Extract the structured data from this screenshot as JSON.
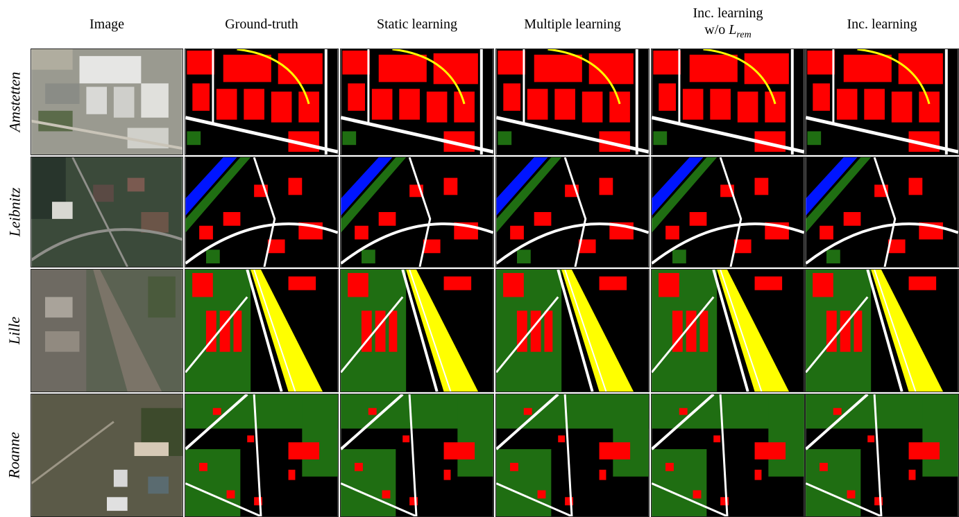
{
  "columns": [
    "Image",
    "Ground-truth",
    "Static learning",
    "Multiple learning",
    "Inc. learning w/o L_rem",
    "Inc. learning"
  ],
  "columns_display": {
    "inc_wo_line1": "Inc. learning",
    "inc_wo_prefix": "w/o ",
    "inc_wo_math": "L",
    "inc_wo_sub": "rem"
  },
  "rows": [
    "Amstetten",
    "Leibnitz",
    "Lille",
    "Roanne"
  ],
  "legend_colors": {
    "building": "#ff0000",
    "road": "#ffffff",
    "vegetation": "#1f6e12",
    "water": "#0015ff",
    "railway": "#ffff00",
    "background": "#000000"
  }
}
